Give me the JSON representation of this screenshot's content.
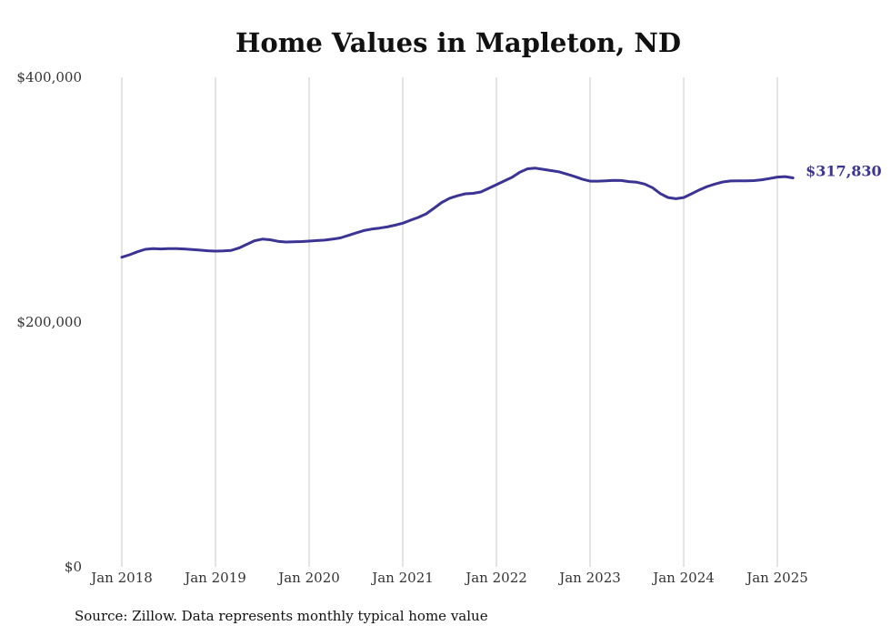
{
  "chart_data": {
    "type": "line",
    "title": "Home Values in Mapleton, ND",
    "xlabel": "",
    "ylabel": "",
    "x_tick_labels": [
      "Jan 2018",
      "Jan 2019",
      "Jan 2020",
      "Jan 2021",
      "Jan 2022",
      "Jan 2023",
      "Jan 2024",
      "Jan 2025"
    ],
    "y_tick_labels": [
      "$0",
      "$200,000",
      "$400,000"
    ],
    "y_ticks": [
      0,
      200000,
      400000
    ],
    "ylim": [
      0,
      400000
    ],
    "xlim": [
      "2018-01",
      "2025-03"
    ],
    "grid": {
      "vertical": true,
      "horizontal": false
    },
    "line_color": "#3b3494",
    "grid_color": "#c8c8c8",
    "end_label": "$317,830",
    "series": [
      {
        "x": [
          "2018-01",
          "2018-02",
          "2018-03",
          "2018-04",
          "2018-05",
          "2018-06",
          "2018-07",
          "2018-08",
          "2018-09",
          "2018-10",
          "2018-11",
          "2018-12",
          "2019-01",
          "2019-02",
          "2019-03",
          "2019-04",
          "2019-05",
          "2019-06",
          "2019-07",
          "2019-08",
          "2019-09",
          "2019-10",
          "2019-11",
          "2019-12",
          "2020-01",
          "2020-02",
          "2020-03",
          "2020-04",
          "2020-05",
          "2020-06",
          "2020-07",
          "2020-08",
          "2020-09",
          "2020-10",
          "2020-11",
          "2020-12",
          "2021-01",
          "2021-02",
          "2021-03",
          "2021-04",
          "2021-05",
          "2021-06",
          "2021-07",
          "2021-08",
          "2021-09",
          "2021-10",
          "2021-11",
          "2021-12",
          "2022-01",
          "2022-02",
          "2022-03",
          "2022-04",
          "2022-05",
          "2022-06",
          "2022-07",
          "2022-08",
          "2022-09",
          "2022-10",
          "2022-11",
          "2022-12",
          "2023-01",
          "2023-02",
          "2023-03",
          "2023-04",
          "2023-05",
          "2023-06",
          "2023-07",
          "2023-08",
          "2023-09",
          "2023-10",
          "2023-11",
          "2023-12",
          "2024-01",
          "2024-02",
          "2024-03",
          "2024-04",
          "2024-05",
          "2024-06",
          "2024-07",
          "2024-08",
          "2024-09",
          "2024-10",
          "2024-11",
          "2024-12",
          "2025-01",
          "2025-02",
          "2025-03"
        ],
        "values": [
          253000,
          255000,
          257500,
          259500,
          260000,
          259800,
          260000,
          260000,
          259800,
          259300,
          258800,
          258300,
          258000,
          258200,
          258600,
          260500,
          263500,
          266500,
          267800,
          267300,
          266000,
          265400,
          265600,
          265800,
          266200,
          266600,
          267000,
          267800,
          268800,
          270800,
          272800,
          274800,
          276000,
          276800,
          277800,
          279200,
          280800,
          283300,
          285600,
          288500,
          293000,
          297800,
          301200,
          303200,
          304800,
          305200,
          306300,
          309300,
          312300,
          315300,
          318300,
          322500,
          325300,
          325800,
          324800,
          323800,
          322800,
          321000,
          319000,
          316800,
          315200,
          315200,
          315500,
          315800,
          315700,
          314800,
          314300,
          312800,
          309800,
          305000,
          301800,
          300800,
          301800,
          304800,
          308000,
          310800,
          312800,
          314500,
          315300,
          315500,
          315500,
          315600,
          316300,
          317300,
          318500,
          318900,
          317830
        ]
      }
    ]
  },
  "source_note": "Source: Zillow. Data represents monthly typical home value"
}
